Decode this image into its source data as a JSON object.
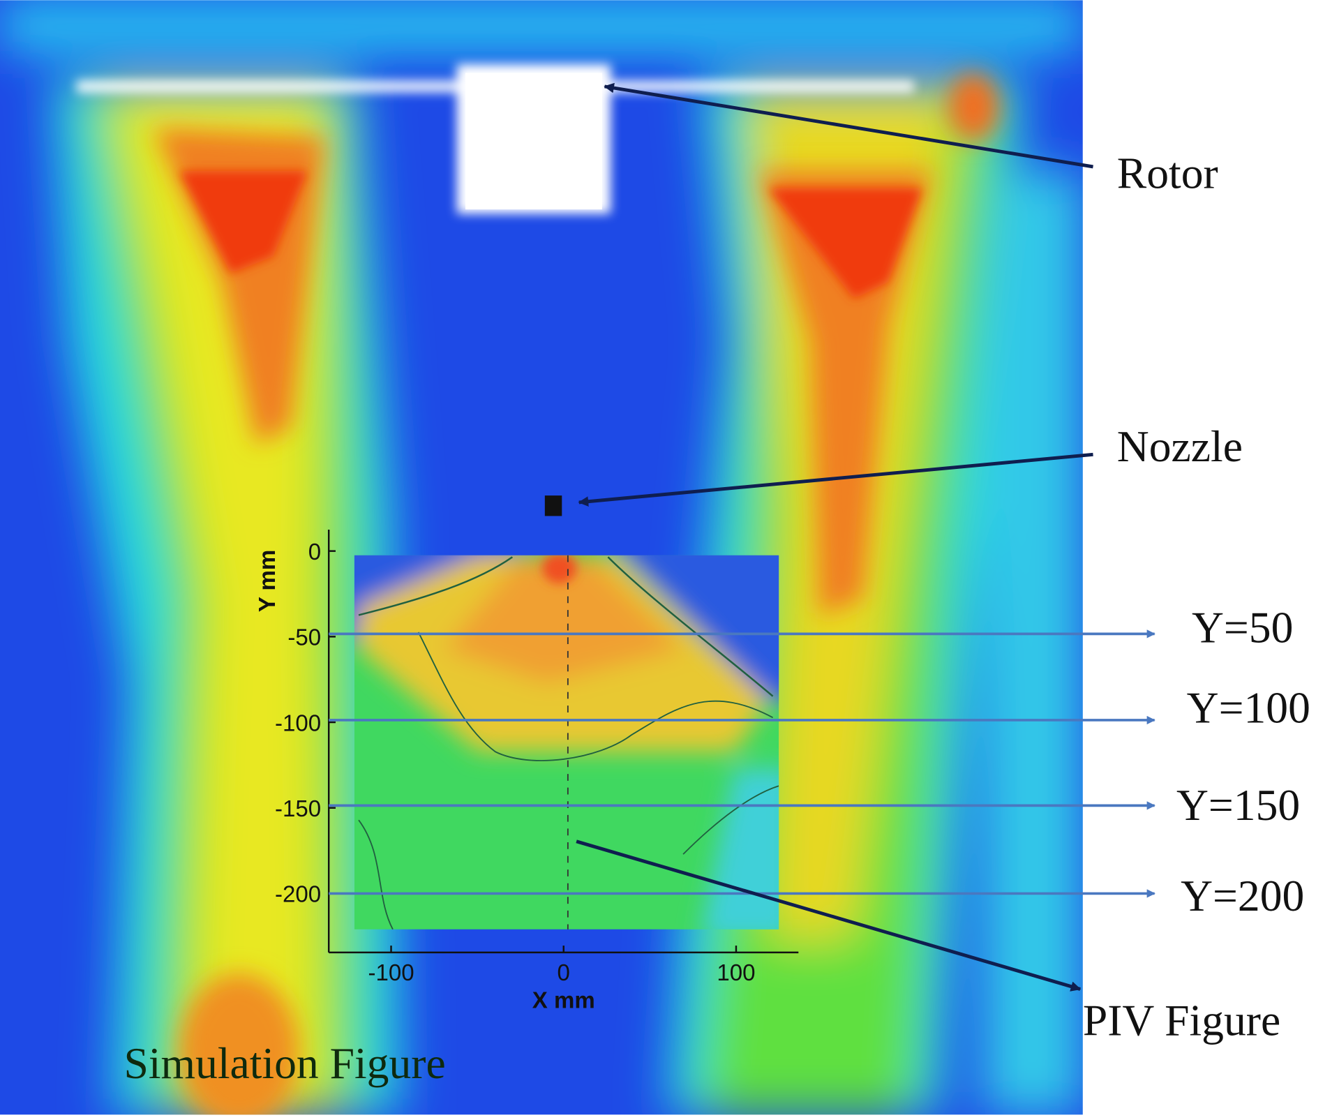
{
  "labels": {
    "rotor": "Rotor",
    "nozzle": "Nozzle",
    "piv": "PIV Figure",
    "simulation": "Simulation Figure",
    "lines": [
      "Y=50",
      "Y=100",
      "Y=150",
      "Y=200"
    ]
  },
  "inset": {
    "xlabel": "X mm",
    "ylabel": "Y mm",
    "xticks": [
      -100,
      0,
      100
    ],
    "yticks": [
      0,
      -50,
      -100,
      -150,
      -200
    ]
  }
}
